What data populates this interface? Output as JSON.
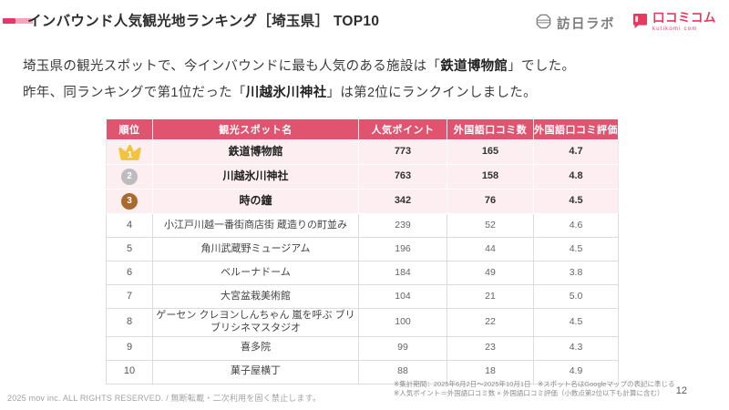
{
  "header": {
    "title": "インバウンド人気観光地ランキング［埼玉県］ TOP10",
    "logo_honichi": "訪日ラボ",
    "logo_kutikomi": "口コミコム",
    "logo_kutikomi_sub": "kutikomi com"
  },
  "intro": {
    "line1_pre": "埼玉県の観光スポットで、今インバウンドに最も人気のある施設は「",
    "line1_bold": "鉄道博物館",
    "line1_post": "」でした。",
    "line2_pre": "昨年、同ランキングで第1位だった「",
    "line2_bold": "川越氷川神社",
    "line2_post": "」は第2位にランクインしました。"
  },
  "table": {
    "headers": [
      "順位",
      "観光スポット名",
      "人気ポイント",
      "外国語口コミ数",
      "外国語口コミ評価"
    ],
    "rows": [
      {
        "rank": "1",
        "badge": "crown",
        "name": "鉄道博物館",
        "points": "773",
        "reviews": "165",
        "rating": "4.7",
        "highlight": true
      },
      {
        "rank": "2",
        "badge": "silver",
        "name": "川越氷川神社",
        "points": "763",
        "reviews": "158",
        "rating": "4.8",
        "highlight": true
      },
      {
        "rank": "3",
        "badge": "bronze",
        "name": "時の鐘",
        "points": "342",
        "reviews": "76",
        "rating": "4.5",
        "highlight": true
      },
      {
        "rank": "4",
        "badge": "plain",
        "name": "小江戸川越一番街商店街 蔵造りの町並み",
        "points": "239",
        "reviews": "52",
        "rating": "4.6",
        "highlight": false
      },
      {
        "rank": "5",
        "badge": "plain",
        "name": "角川武蔵野ミュージアム",
        "points": "196",
        "reviews": "44",
        "rating": "4.5",
        "highlight": false
      },
      {
        "rank": "6",
        "badge": "plain",
        "name": "ベルーナドーム",
        "points": "184",
        "reviews": "49",
        "rating": "3.8",
        "highlight": false
      },
      {
        "rank": "7",
        "badge": "plain",
        "name": "大宮盆栽美術館",
        "points": "104",
        "reviews": "21",
        "rating": "5.0",
        "highlight": false
      },
      {
        "rank": "8",
        "badge": "plain",
        "name": "ゲーセン クレヨンしんちゃん 嵐を呼ぶ ブリブリシネマスタジオ",
        "points": "100",
        "reviews": "22",
        "rating": "4.5",
        "highlight": false
      },
      {
        "rank": "9",
        "badge": "plain",
        "name": "喜多院",
        "points": "99",
        "reviews": "23",
        "rating": "4.3",
        "highlight": false
      },
      {
        "rank": "10",
        "badge": "plain",
        "name": "菓子屋横丁",
        "points": "88",
        "reviews": "18",
        "rating": "4.9",
        "highlight": false
      }
    ]
  },
  "footer": {
    "copyright": "2025 mov inc. ALL RIGHTS RESERVED. / 無断転載・二次利用を固く禁止します。",
    "note1": "※集計期間：2025年6月2日～2025年10月1日　※スポット名はGoogleマップの表記に準じる",
    "note2": "※人気ポイント＝外国語口コミ数 × 外国語口コミ評価（小数点第2位以下も計算に含む）",
    "page_number": "12"
  },
  "colors": {
    "accent_dark": "#e8356b",
    "accent_light": "#f4a3bb",
    "table_header_bg": "#e0546f",
    "highlight_row_bg": "#fdeef1",
    "crown_gold": "#f2c33c",
    "rank2_silver": "#bcbcbe",
    "rank3_bronze": "#ab6a2d",
    "brand_pink": "#e8385f",
    "honichi_gray": "#7d7d7d"
  }
}
